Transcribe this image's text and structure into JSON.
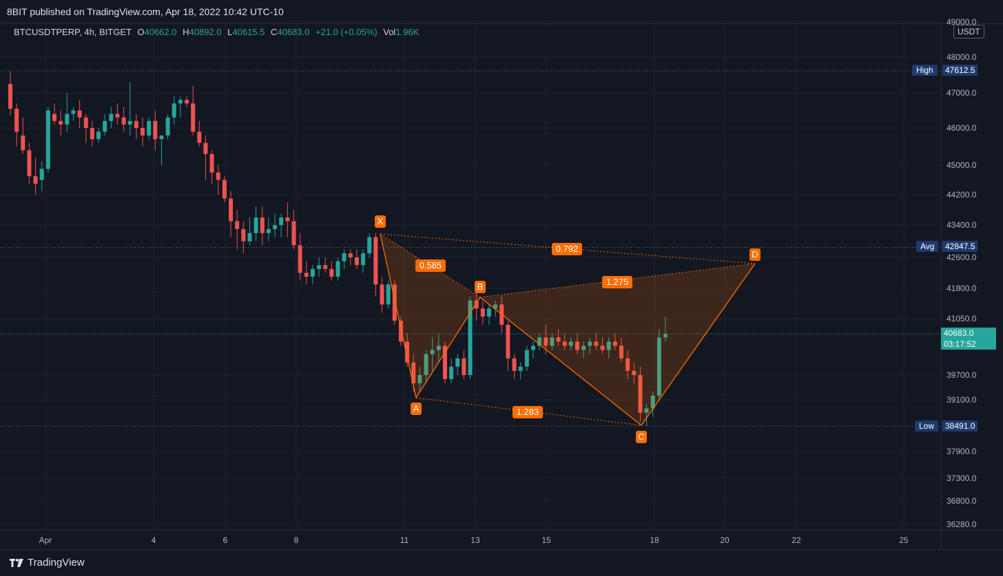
{
  "header": {
    "published_text": "8BIT published on TradingView.com, Apr 18, 2022 10:42 UTC-10"
  },
  "legend": {
    "symbol": "BTCUSDTPERP, 4h, BITGET",
    "o_label": "O",
    "o_value": "40662.0",
    "h_label": "H",
    "h_value": "40892.0",
    "l_label": "L",
    "l_value": "40615.5",
    "c_label": "C",
    "c_value": "40683.0",
    "change": "+21.0 (+0.05%)",
    "vol_label": "Vol",
    "vol_value": "1.96K"
  },
  "currency": "USDT",
  "price_axis": {
    "ticks": [
      "49000.0",
      "48000.0",
      "47000.0",
      "46000.0",
      "45000.0",
      "44200.0",
      "43400.0",
      "42600.0",
      "41800.0",
      "41050.0",
      "39700.0",
      "39100.0",
      "37900.0",
      "37300.0",
      "36800.0",
      "36280.0"
    ],
    "high_label": "High",
    "high_value": "47612.5",
    "avg_label": "Avg",
    "avg_value": "42847.5",
    "low_label": "Low",
    "low_value": "38491.0",
    "last_value": "40683.0",
    "countdown": "03:17:52"
  },
  "time_axis": {
    "ticks": [
      "Apr",
      "4",
      "6",
      "8",
      "11",
      "13",
      "15",
      "18",
      "20",
      "22",
      "25"
    ]
  },
  "pattern": {
    "points": {
      "X": "X",
      "A": "A",
      "B": "B",
      "C": "C",
      "D": "D"
    },
    "ratios": {
      "xb": "0.585",
      "xd": "0.792",
      "bd": "1.275",
      "ac": "1.283"
    }
  },
  "colors": {
    "background": "#131722",
    "up": "#26a69a",
    "down": "#ef5350",
    "pattern": "#ff6d00",
    "label_bg": "#1e3a6e"
  },
  "footer": {
    "brand": "TradingView"
  },
  "chart_data": {
    "type": "candlestick",
    "symbol": "BTCUSDTPERP",
    "interval": "4h",
    "ylim": [
      36280,
      49000
    ],
    "candles_approx": [
      [
        47250,
        47600,
        46350,
        46550
      ],
      [
        46550,
        46700,
        45500,
        45900
      ],
      [
        45800,
        46300,
        45300,
        45400
      ],
      [
        45400,
        45600,
        44500,
        44700
      ],
      [
        44700,
        45200,
        44200,
        44500
      ],
      [
        44600,
        45100,
        44300,
        44900
      ],
      [
        44900,
        46600,
        44800,
        46500
      ],
      [
        46400,
        46700,
        46100,
        46200
      ],
      [
        46200,
        46500,
        45800,
        46100
      ],
      [
        46100,
        47000,
        45900,
        46400
      ],
      [
        46400,
        46600,
        46200,
        46500
      ],
      [
        46500,
        46800,
        46000,
        46300
      ],
      [
        46300,
        46400,
        45600,
        46000
      ],
      [
        46000,
        46200,
        45500,
        45700
      ],
      [
        45700,
        46000,
        45600,
        45900
      ],
      [
        45900,
        46400,
        45800,
        46200
      ],
      [
        46200,
        46600,
        46000,
        46400
      ],
      [
        46400,
        46700,
        46100,
        46300
      ],
      [
        46300,
        46600,
        45900,
        46100
      ],
      [
        46100,
        47300,
        45800,
        46200
      ],
      [
        46200,
        46400,
        45700,
        46000
      ],
      [
        46000,
        46300,
        45500,
        45800
      ],
      [
        45800,
        46300,
        45700,
        46200
      ],
      [
        46200,
        46500,
        45400,
        45700
      ],
      [
        45700,
        45800,
        45000,
        45800
      ],
      [
        45800,
        46400,
        45700,
        46300
      ],
      [
        46300,
        46900,
        46100,
        46700
      ],
      [
        46700,
        46900,
        46300,
        46800
      ],
      [
        46800,
        46900,
        46600,
        46700
      ],
      [
        46700,
        47200,
        45800,
        45900
      ],
      [
        45900,
        46200,
        45500,
        45600
      ],
      [
        45600,
        45800,
        44600,
        45300
      ],
      [
        45300,
        45400,
        44500,
        44800
      ],
      [
        44800,
        45000,
        44200,
        44600
      ],
      [
        44600,
        44700,
        44000,
        44100
      ],
      [
        44100,
        44300,
        43100,
        43500
      ],
      [
        43500,
        43800,
        42800,
        43300
      ],
      [
        43300,
        43500,
        42700,
        43000
      ],
      [
        43000,
        43600,
        42900,
        43200
      ],
      [
        43200,
        43900,
        43000,
        43600
      ],
      [
        43600,
        43900,
        42900,
        43200
      ],
      [
        43200,
        43600,
        43000,
        43300
      ],
      [
        43300,
        43700,
        43100,
        43400
      ],
      [
        43400,
        43700,
        43100,
        43600
      ],
      [
        43600,
        44000,
        43100,
        43500
      ],
      [
        43500,
        43800,
        42800,
        42900
      ],
      [
        42900,
        43200,
        42000,
        42200
      ],
      [
        42200,
        42500,
        41900,
        42100
      ],
      [
        42100,
        42400,
        41900,
        42300
      ],
      [
        42300,
        42600,
        42100,
        42400
      ],
      [
        42400,
        42600,
        42200,
        42300
      ],
      [
        42300,
        42500,
        42000,
        42100
      ],
      [
        42100,
        42600,
        42000,
        42500
      ],
      [
        42500,
        42800,
        42300,
        42700
      ],
      [
        42700,
        42800,
        42400,
        42600
      ],
      [
        42600,
        42800,
        42300,
        42400
      ],
      [
        42400,
        42800,
        42200,
        42700
      ],
      [
        42700,
        43200,
        42600,
        43100
      ],
      [
        43100,
        43200,
        41600,
        41900
      ],
      [
        41900,
        42100,
        41200,
        41400
      ],
      [
        41400,
        42000,
        41300,
        41900
      ],
      [
        41900,
        42000,
        40900,
        41000
      ],
      [
        41000,
        41100,
        40400,
        40500
      ],
      [
        40500,
        40700,
        39900,
        40000
      ],
      [
        40000,
        40200,
        39300,
        39500
      ],
      [
        39500,
        39900,
        39300,
        39700
      ],
      [
        39700,
        40300,
        39500,
        40200
      ],
      [
        40200,
        40600,
        39800,
        40300
      ],
      [
        40300,
        40700,
        40000,
        40400
      ],
      [
        40400,
        40500,
        39500,
        39600
      ],
      [
        39600,
        40100,
        39500,
        39900
      ],
      [
        39900,
        40200,
        39700,
        40100
      ],
      [
        40100,
        40300,
        39600,
        39700
      ],
      [
        39700,
        41600,
        39600,
        41500
      ],
      [
        41500,
        41700,
        41000,
        41300
      ],
      [
        41300,
        41500,
        40900,
        41100
      ],
      [
        41100,
        41400,
        40900,
        41300
      ],
      [
        41300,
        41500,
        41100,
        41400
      ],
      [
        41400,
        41600,
        40700,
        40900
      ],
      [
        40900,
        41000,
        39800,
        40100
      ],
      [
        40100,
        40200,
        39600,
        39800
      ],
      [
        39800,
        40000,
        39600,
        39900
      ],
      [
        39900,
        40400,
        39800,
        40300
      ],
      [
        40300,
        40500,
        40100,
        40400
      ],
      [
        40400,
        40700,
        40300,
        40600
      ],
      [
        40600,
        40900,
        40200,
        40400
      ],
      [
        40400,
        40700,
        40300,
        40600
      ],
      [
        40600,
        40800,
        40400,
        40500
      ],
      [
        40500,
        40700,
        40300,
        40400
      ],
      [
        40400,
        40600,
        40300,
        40500
      ],
      [
        40500,
        40700,
        40200,
        40300
      ],
      [
        40300,
        40500,
        40100,
        40400
      ],
      [
        40400,
        40600,
        40200,
        40500
      ],
      [
        40500,
        40700,
        40300,
        40400
      ],
      [
        40400,
        40600,
        40200,
        40300
      ],
      [
        40300,
        40600,
        40100,
        40500
      ],
      [
        40500,
        40700,
        40300,
        40400
      ],
      [
        40400,
        40600,
        40000,
        40100
      ],
      [
        40100,
        40300,
        39600,
        39800
      ],
      [
        39800,
        40000,
        39500,
        39700
      ],
      [
        39700,
        39900,
        38600,
        38800
      ],
      [
        38800,
        39000,
        38500,
        38900
      ],
      [
        38900,
        39300,
        38700,
        39200
      ],
      [
        39200,
        40800,
        39100,
        40600
      ],
      [
        40600,
        41100,
        40500,
        40683
      ]
    ]
  }
}
